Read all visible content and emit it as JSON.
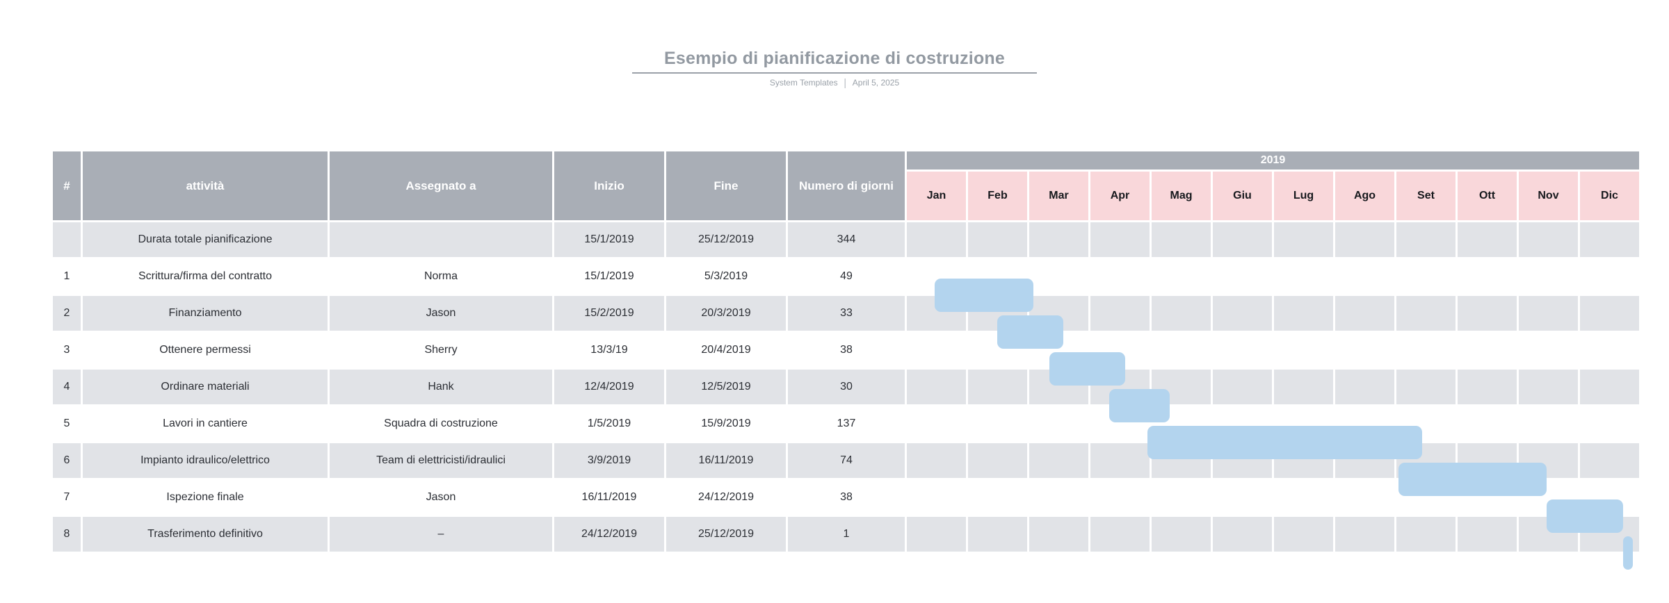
{
  "title_block": {
    "title": "Esempio di pianificazione di costruzione",
    "byline": "System Templates",
    "separator": "|",
    "date": "April 5, 2025"
  },
  "colors": {
    "header_bg": "#a9aeb6",
    "header_text": "#ffffff",
    "month_bg": "#f9d7da",
    "month_text": "#17191d",
    "row_alt_bg": "#e1e3e7",
    "row_text": "#2b2e34",
    "bar_fill": "#b3d4ee",
    "title_text": "#9299a1",
    "subtitle_text": "#9aa1a9"
  },
  "table": {
    "columns": [
      "#",
      "attività",
      "Assegnato a",
      "Inizio",
      "Fine",
      "Numero di giorni"
    ],
    "year_header": "2019",
    "months": [
      "Jan",
      "Feb",
      "Mar",
      "Apr",
      "Mag",
      "Giu",
      "Lug",
      "Ago",
      "Set",
      "Ott",
      "Nov",
      "Dic"
    ],
    "rows": [
      {
        "num": "",
        "task": "Durata totale pianificazione",
        "assignee": "",
        "start": "15/1/2019",
        "end": "25/12/2019",
        "days": "344"
      },
      {
        "num": "1",
        "task": "Scrittura/firma del contratto",
        "assignee": "Norma",
        "start": "15/1/2019",
        "end": "5/3/2019",
        "days": "49"
      },
      {
        "num": "2",
        "task": "Finanziamento",
        "assignee": "Jason",
        "start": "15/2/2019",
        "end": "20/3/2019",
        "days": "33"
      },
      {
        "num": "3",
        "task": "Ottenere permessi",
        "assignee": "Sherry",
        "start": "13/3/19",
        "end": "20/4/2019",
        "days": "38"
      },
      {
        "num": "4",
        "task": "Ordinare materiali",
        "assignee": "Hank",
        "start": "12/4/2019",
        "end": "12/5/2019",
        "days": "30"
      },
      {
        "num": "5",
        "task": "Lavori in cantiere",
        "assignee": "Squadra di costruzione",
        "start": "1/5/2019",
        "end": "15/9/2019",
        "days": "137"
      },
      {
        "num": "6",
        "task": "Impianto idraulico/elettrico",
        "assignee": "Team di elettricisti/idraulici",
        "start": "3/9/2019",
        "end": "16/11/2019",
        "days": "74"
      },
      {
        "num": "7",
        "task": "Ispezione finale",
        "assignee": "Jason",
        "start": "16/11/2019",
        "end": "24/12/2019",
        "days": "38"
      },
      {
        "num": "8",
        "task": "Trasferimento definitivo",
        "assignee": "–",
        "start": "24/12/2019",
        "end": "25/12/2019",
        "days": "1"
      }
    ]
  },
  "chart_data": {
    "type": "bar",
    "subtype": "gantt-timeline",
    "title": "Esempio di pianificazione di costruzione",
    "year": "2019",
    "x_ticks": [
      "Jan",
      "Feb",
      "Mar",
      "Apr",
      "Mag",
      "Giu",
      "Lug",
      "Ago",
      "Set",
      "Ott",
      "Nov",
      "Dic"
    ],
    "x_range": [
      "1/1/2019",
      "31/12/2019"
    ],
    "grid": true,
    "categories": [
      "Scrittura/firma del contratto",
      "Finanziamento",
      "Ottenere permessi",
      "Ordinare materiali",
      "Lavori in cantiere",
      "Impianto idraulico/elettrico",
      "Ispezione finale",
      "Trasferimento definitivo"
    ],
    "series": [
      {
        "name": "Numero di giorni",
        "values": [
          49,
          33,
          38,
          30,
          137,
          74,
          38,
          1
        ]
      }
    ],
    "bars": [
      {
        "row": 1,
        "task": "Scrittura/firma del contratto",
        "start": "15/1/2019",
        "end": "5/3/2019",
        "days": 49
      },
      {
        "row": 2,
        "task": "Finanziamento",
        "start": "15/2/2019",
        "end": "20/3/2019",
        "days": 33
      },
      {
        "row": 3,
        "task": "Ottenere permessi",
        "start": "13/3/19",
        "end": "20/4/2019",
        "days": 38
      },
      {
        "row": 4,
        "task": "Ordinare materiali",
        "start": "12/4/2019",
        "end": "12/5/2019",
        "days": 30
      },
      {
        "row": 5,
        "task": "Lavori in cantiere",
        "start": "1/5/2019",
        "end": "15/9/2019",
        "days": 137
      },
      {
        "row": 6,
        "task": "Impianto idraulico/elettrico",
        "start": "3/9/2019",
        "end": "16/11/2019",
        "days": 74
      },
      {
        "row": 7,
        "task": "Ispezione finale",
        "start": "16/11/2019",
        "end": "24/12/2019",
        "days": 38
      },
      {
        "row": 8,
        "task": "Trasferimento definitivo",
        "start": "24/12/2019",
        "end": "25/12/2019",
        "days": 1
      }
    ]
  }
}
